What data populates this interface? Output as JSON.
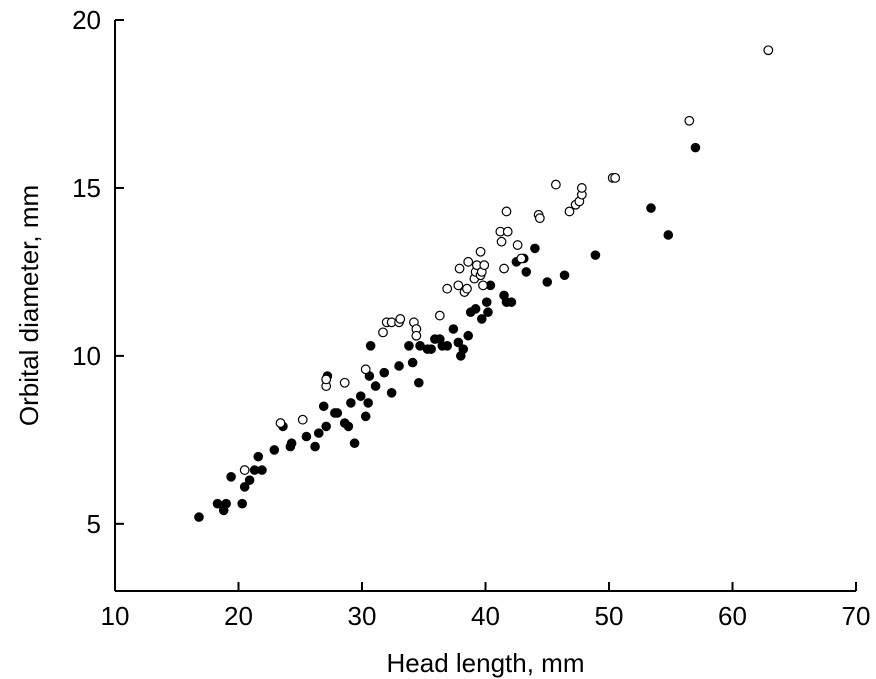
{
  "chart_data": {
    "type": "scatter",
    "title": "",
    "xlabel": "Head length, mm",
    "ylabel": "Orbital diameter, mm",
    "xlim": [
      10,
      70
    ],
    "ylim": [
      3,
      20
    ],
    "x_ticks": [
      10,
      20,
      30,
      40,
      50,
      60,
      70
    ],
    "y_ticks": [
      5,
      10,
      15,
      20
    ],
    "grid": false,
    "legend": "none",
    "series": [
      {
        "marker": "filled-circle",
        "color": "#000000",
        "points": [
          [
            16.8,
            5.2
          ],
          [
            18.3,
            5.6
          ],
          [
            18.8,
            5.4
          ],
          [
            19.0,
            5.6
          ],
          [
            19.4,
            6.4
          ],
          [
            20.3,
            5.6
          ],
          [
            20.5,
            6.1
          ],
          [
            20.9,
            6.3
          ],
          [
            21.3,
            6.6
          ],
          [
            21.6,
            7.0
          ],
          [
            21.9,
            6.6
          ],
          [
            22.9,
            7.2
          ],
          [
            23.6,
            7.9
          ],
          [
            24.2,
            7.3
          ],
          [
            24.3,
            7.4
          ],
          [
            25.5,
            7.6
          ],
          [
            26.2,
            7.3
          ],
          [
            26.5,
            7.7
          ],
          [
            26.9,
            8.5
          ],
          [
            27.1,
            7.9
          ],
          [
            27.2,
            9.4
          ],
          [
            27.8,
            8.3
          ],
          [
            28.0,
            8.3
          ],
          [
            28.6,
            8.0
          ],
          [
            28.9,
            7.9
          ],
          [
            29.1,
            8.6
          ],
          [
            29.4,
            7.4
          ],
          [
            29.9,
            8.8
          ],
          [
            30.3,
            8.2
          ],
          [
            30.5,
            8.6
          ],
          [
            30.6,
            9.4
          ],
          [
            30.7,
            10.3
          ],
          [
            31.1,
            9.1
          ],
          [
            31.8,
            9.5
          ],
          [
            32.4,
            8.9
          ],
          [
            33.0,
            9.7
          ],
          [
            33.8,
            10.3
          ],
          [
            34.1,
            9.8
          ],
          [
            34.6,
            9.2
          ],
          [
            34.7,
            10.3
          ],
          [
            35.3,
            10.2
          ],
          [
            35.6,
            10.2
          ],
          [
            35.9,
            10.5
          ],
          [
            36.3,
            10.5
          ],
          [
            36.5,
            10.3
          ],
          [
            36.9,
            10.3
          ],
          [
            37.4,
            10.8
          ],
          [
            37.8,
            10.4
          ],
          [
            38.0,
            10.0
          ],
          [
            38.2,
            10.2
          ],
          [
            38.6,
            10.6
          ],
          [
            38.8,
            11.3
          ],
          [
            39.2,
            11.4
          ],
          [
            39.7,
            11.1
          ],
          [
            40.1,
            11.6
          ],
          [
            40.2,
            11.3
          ],
          [
            40.4,
            12.1
          ],
          [
            41.5,
            11.8
          ],
          [
            41.7,
            11.6
          ],
          [
            42.1,
            11.6
          ],
          [
            42.5,
            12.8
          ],
          [
            43.1,
            12.9
          ],
          [
            43.3,
            12.5
          ],
          [
            44.0,
            13.2
          ],
          [
            45.0,
            12.2
          ],
          [
            46.4,
            12.4
          ],
          [
            48.9,
            13.0
          ],
          [
            53.4,
            14.4
          ],
          [
            54.8,
            13.6
          ],
          [
            57.0,
            16.2
          ]
        ]
      },
      {
        "marker": "open-circle",
        "color": "#000000",
        "points": [
          [
            20.5,
            6.6
          ],
          [
            23.4,
            8.0
          ],
          [
            25.2,
            8.1
          ],
          [
            27.1,
            9.1
          ],
          [
            27.1,
            9.3
          ],
          [
            28.6,
            9.2
          ],
          [
            30.3,
            9.6
          ],
          [
            31.7,
            10.7
          ],
          [
            32.0,
            11.0
          ],
          [
            32.4,
            11.0
          ],
          [
            33.0,
            11.0
          ],
          [
            33.1,
            11.1
          ],
          [
            34.2,
            11.0
          ],
          [
            34.4,
            10.8
          ],
          [
            34.4,
            10.6
          ],
          [
            36.3,
            11.2
          ],
          [
            36.9,
            12.0
          ],
          [
            37.8,
            12.1
          ],
          [
            37.9,
            12.6
          ],
          [
            38.3,
            11.9
          ],
          [
            38.5,
            12.0
          ],
          [
            38.6,
            12.8
          ],
          [
            39.1,
            12.3
          ],
          [
            39.2,
            12.5
          ],
          [
            39.3,
            12.7
          ],
          [
            39.6,
            13.1
          ],
          [
            39.6,
            12.4
          ],
          [
            39.7,
            12.5
          ],
          [
            39.8,
            12.1
          ],
          [
            39.9,
            12.7
          ],
          [
            41.2,
            13.7
          ],
          [
            41.3,
            13.4
          ],
          [
            41.5,
            12.6
          ],
          [
            41.7,
            14.3
          ],
          [
            41.8,
            13.7
          ],
          [
            42.6,
            13.3
          ],
          [
            42.9,
            12.9
          ],
          [
            44.3,
            14.2
          ],
          [
            44.4,
            14.1
          ],
          [
            45.7,
            15.1
          ],
          [
            46.8,
            14.3
          ],
          [
            47.3,
            14.5
          ],
          [
            47.6,
            14.6
          ],
          [
            47.8,
            14.8
          ],
          [
            47.8,
            15.0
          ],
          [
            50.3,
            15.3
          ],
          [
            50.5,
            15.3
          ],
          [
            56.5,
            17.0
          ],
          [
            62.9,
            19.1
          ]
        ]
      }
    ]
  }
}
